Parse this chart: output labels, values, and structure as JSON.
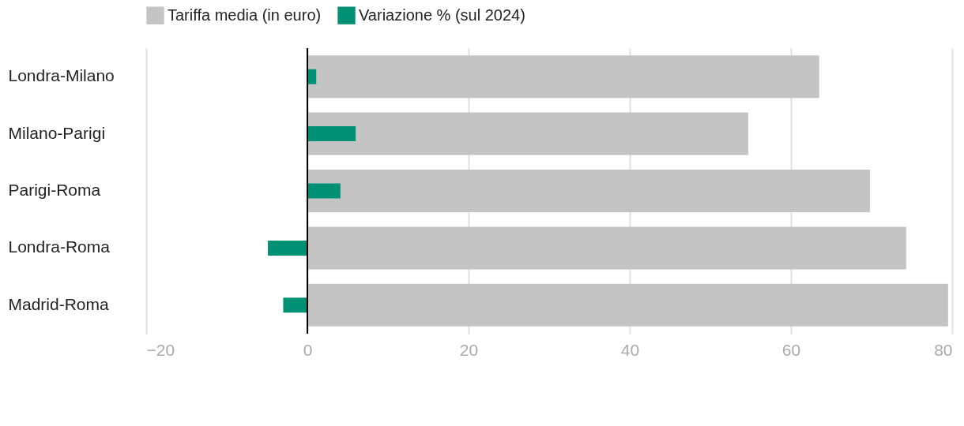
{
  "chart_data": {
    "type": "bar",
    "orientation": "horizontal",
    "categories": [
      "Londra-Milano",
      "Milano-Parigi",
      "Parigi-Roma",
      "Londra-Roma",
      "Madrid-Roma"
    ],
    "series": [
      {
        "name": "Tariffa media (in euro)",
        "color": "#c4c4c4",
        "values": [
          63.5,
          54.7,
          69.8,
          74.3,
          79.5
        ]
      },
      {
        "name": "Variazione % (sul 2024)",
        "color": "#009174",
        "values": [
          1.1,
          6.0,
          4.1,
          -4.9,
          -3.0
        ]
      }
    ],
    "xlim": [
      -20,
      80
    ],
    "xticks": [
      {
        "value": -20,
        "label": "−20"
      },
      0,
      20,
      40,
      60,
      80
    ],
    "grid": "x",
    "legend": "top left"
  }
}
